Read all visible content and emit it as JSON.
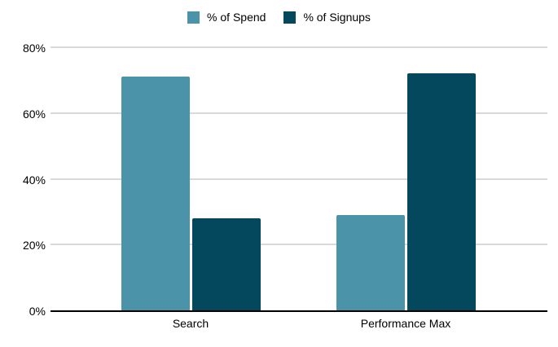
{
  "chart_data": {
    "type": "bar",
    "title": "",
    "categories": [
      "Search",
      "Performance Max"
    ],
    "series": [
      {
        "name": "% of Spend",
        "color": "#4A93A8",
        "values": [
          71,
          29
        ]
      },
      {
        "name": "% of Signups",
        "color": "#04485E",
        "values": [
          28,
          72
        ]
      }
    ],
    "xlabel": "",
    "ylabel": "",
    "ylim": [
      0,
      80
    ],
    "y_ticks": [
      {
        "value": 0,
        "label": "0%"
      },
      {
        "value": 20,
        "label": "20%"
      },
      {
        "value": 40,
        "label": "40%"
      },
      {
        "value": 60,
        "label": "60%"
      },
      {
        "value": 80,
        "label": "80%"
      }
    ],
    "grid": true,
    "legend_position": "top",
    "colors": {
      "gridline": "#d9d9d9",
      "axis_line": "#000000",
      "text": "#000000",
      "background": "#ffffff"
    }
  }
}
